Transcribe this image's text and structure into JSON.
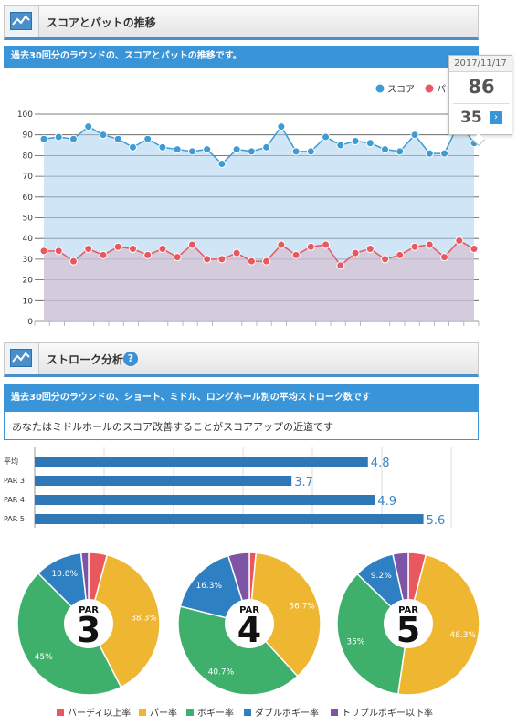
{
  "section1": {
    "title": "スコアとパットの推移",
    "subtitle": "過去30回分のラウンドの、スコアとパットの推移です。"
  },
  "section2": {
    "title": "ストローク分析",
    "subtitle": "過去30回分のラウンドの、ショート、ミドル、ロングホール別の平均ストローク数です",
    "advice": "あなたはミドルホールのスコア改善することがスコアアップの近道です",
    "help_icon": "?"
  },
  "tooltip": {
    "date": "2017/11/17",
    "score": "86",
    "putts": "35",
    "arrow": "›"
  },
  "colors": {
    "score": "#3e9bd3",
    "putt": "#e8585e",
    "accent": "#3a95d8",
    "birdie": "#e8585e",
    "par": "#efb631",
    "bogey": "#3fb06b",
    "double": "#2f80c2",
    "triple": "#7d55a4"
  },
  "chart_data": [
    {
      "type": "line",
      "title": "",
      "xlabel": "",
      "ylabel": "",
      "ylim": [
        0,
        100
      ],
      "yticks": [
        "0",
        "10",
        "20",
        "30",
        "40",
        "50",
        "60",
        "70",
        "80",
        "90",
        "100"
      ],
      "legend_position": "top-right",
      "series": [
        {
          "name": "スコア",
          "values": [
            88,
            89,
            88,
            94,
            90,
            88,
            84,
            88,
            84,
            83,
            82,
            83,
            76,
            83,
            82,
            84,
            94,
            82,
            82,
            89,
            85,
            87,
            86,
            83,
            82,
            90,
            81,
            81,
            96,
            86
          ]
        },
        {
          "name": "パット",
          "values": [
            34,
            34,
            29,
            35,
            32,
            36,
            35,
            32,
            35,
            31,
            37,
            30,
            30,
            33,
            29,
            29,
            37,
            32,
            36,
            37,
            27,
            33,
            35,
            30,
            32,
            36,
            37,
            31,
            39,
            35
          ]
        }
      ]
    },
    {
      "type": "bar",
      "orientation": "horizontal",
      "categories": [
        "平均",
        "PAR 3",
        "PAR 4",
        "PAR 5"
      ],
      "values": [
        4.8,
        3.7,
        4.9,
        5.6
      ],
      "data_labels": [
        "4.8",
        "3.7",
        "4.9",
        "5.6"
      ]
    },
    {
      "type": "pie",
      "center_label": "PAR",
      "center_number": "3",
      "categories": [
        "バーディ以上率",
        "パー率",
        "ボギー率",
        "ダブルボギー率",
        "トリプルボギー以下率"
      ],
      "values": [
        4.2,
        38.3,
        45,
        10.8,
        1.7
      ],
      "labels": [
        "",
        "38.3%",
        "45%",
        "10.8%",
        ""
      ]
    },
    {
      "type": "pie",
      "center_label": "PAR",
      "center_number": "4",
      "categories": [
        "バーディ以上率",
        "パー率",
        "ボギー率",
        "ダブルボギー率",
        "トリプルボギー以下率"
      ],
      "values": [
        1.5,
        36.7,
        40.7,
        16.3,
        4.8
      ],
      "labels": [
        "",
        "36.7%",
        "40.7%",
        "16.3%",
        ""
      ]
    },
    {
      "type": "pie",
      "center_label": "PAR",
      "center_number": "5",
      "categories": [
        "バーディ以上率",
        "パー率",
        "ボギー率",
        "ダブルボギー率",
        "トリプルボギー以下率"
      ],
      "values": [
        4,
        48.3,
        35,
        9.2,
        3.5
      ],
      "labels": [
        "",
        "48.3%",
        "35%",
        "9.2%",
        ""
      ]
    }
  ],
  "legend": [
    "バーディ以上率",
    "パー率",
    "ボギー率",
    "ダブルボギー率",
    "トリプルボギー以下率"
  ]
}
